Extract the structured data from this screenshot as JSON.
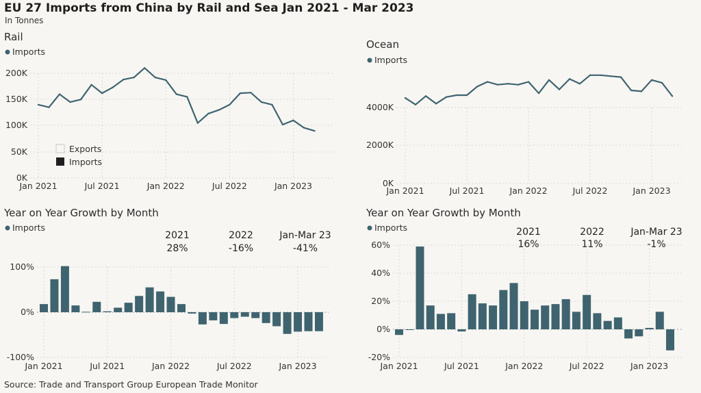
{
  "header": {
    "title": "EU 27 Imports from China by Rail and Sea Jan 2021 - Mar 2023",
    "subtitle": "In Tonnes"
  },
  "footer": "Source: Trade and Transport Group European Trade Monitor",
  "colors": {
    "series": "#3f6470",
    "background": "#f7f6f2"
  },
  "chart_data": [
    {
      "type": "line",
      "title": "Rail",
      "legend": [
        "Imports"
      ],
      "legend2": [
        "Exports",
        "Imports"
      ],
      "x_ticks": [
        "Jan 2021",
        "Jul 2021",
        "Jan 2022",
        "Jul 2022",
        "Jan 2023"
      ],
      "y_ticks": [
        "0K",
        "50K",
        "100K",
        "150K",
        "200K"
      ],
      "ylim": [
        0,
        220000
      ],
      "x": [
        "2021-01",
        "2021-02",
        "2021-03",
        "2021-04",
        "2021-05",
        "2021-06",
        "2021-07",
        "2021-08",
        "2021-09",
        "2021-10",
        "2021-11",
        "2021-12",
        "2022-01",
        "2022-02",
        "2022-03",
        "2022-04",
        "2022-05",
        "2022-06",
        "2022-07",
        "2022-08",
        "2022-09",
        "2022-10",
        "2022-11",
        "2022-12",
        "2023-01",
        "2023-02",
        "2023-03"
      ],
      "series": [
        {
          "name": "Imports",
          "values": [
            140000,
            135000,
            160000,
            145000,
            150000,
            178000,
            162000,
            173000,
            188000,
            192000,
            210000,
            192000,
            187000,
            160000,
            155000,
            105000,
            123000,
            130000,
            140000,
            162000,
            163000,
            145000,
            140000,
            102000,
            110000,
            96000,
            90000
          ]
        }
      ]
    },
    {
      "type": "line",
      "title": "Ocean",
      "legend": [
        "Imports"
      ],
      "x_ticks": [
        "Jan 2021",
        "Jul 2021",
        "Jan 2022",
        "Jul 2022",
        "Jan 2023"
      ],
      "y_ticks": [
        "0K",
        "2000K",
        "4000K"
      ],
      "ylim": [
        0,
        6200000
      ],
      "x": [
        "2021-01",
        "2021-02",
        "2021-03",
        "2021-04",
        "2021-05",
        "2021-06",
        "2021-07",
        "2021-08",
        "2021-09",
        "2021-10",
        "2021-11",
        "2021-12",
        "2022-01",
        "2022-02",
        "2022-03",
        "2022-04",
        "2022-05",
        "2022-06",
        "2022-07",
        "2022-08",
        "2022-09",
        "2022-10",
        "2022-11",
        "2022-12",
        "2023-01",
        "2023-02",
        "2023-03"
      ],
      "series": [
        {
          "name": "Imports",
          "values": [
            4500000,
            4150000,
            4600000,
            4200000,
            4550000,
            4650000,
            4650000,
            5100000,
            5350000,
            5200000,
            5250000,
            5200000,
            5350000,
            4750000,
            5450000,
            4950000,
            5500000,
            5250000,
            5700000,
            5700000,
            5650000,
            5600000,
            4900000,
            4850000,
            5450000,
            5300000,
            4600000
          ]
        }
      ]
    },
    {
      "type": "bar",
      "title": "Year on Year Growth by Month",
      "legend": [
        "Imports"
      ],
      "x_ticks": [
        "Jan 2021",
        "Jul 2021",
        "Jan 2022",
        "Jul 2022",
        "Jan 2023"
      ],
      "y_ticks": [
        "-100%",
        "0%",
        "100%"
      ],
      "ylim": [
        -100,
        100
      ],
      "x": [
        "2021-01",
        "2021-02",
        "2021-03",
        "2021-04",
        "2021-05",
        "2021-06",
        "2021-07",
        "2021-08",
        "2021-09",
        "2021-10",
        "2021-11",
        "2021-12",
        "2022-01",
        "2022-02",
        "2022-03",
        "2022-04",
        "2022-05",
        "2022-06",
        "2022-07",
        "2022-08",
        "2022-09",
        "2022-10",
        "2022-11",
        "2022-12",
        "2023-01",
        "2023-02",
        "2023-03"
      ],
      "series": [
        {
          "name": "Imports",
          "values": [
            18,
            73,
            102,
            15,
            1,
            23,
            2,
            10,
            21,
            36,
            55,
            46,
            34,
            18,
            -3,
            -27,
            -18,
            -26,
            -13,
            -10,
            -13,
            -24,
            -31,
            -48,
            -43,
            -42,
            -42
          ]
        }
      ],
      "summary": [
        {
          "label": "2021",
          "value": "28%"
        },
        {
          "label": "2022",
          "value": "-16%"
        },
        {
          "label": "Jan-Mar 23",
          "value": "-41%"
        }
      ]
    },
    {
      "type": "bar",
      "title": "Year on Year Growth by Month",
      "legend": [
        "Imports"
      ],
      "x_ticks": [
        "Jan 2021",
        "Jul 2021",
        "Jan 2022",
        "Jul 2022",
        "Jan 2023"
      ],
      "y_ticks": [
        "-20%",
        "0%",
        "20%",
        "40%",
        "60%"
      ],
      "ylim": [
        -20,
        60
      ],
      "x": [
        "2021-01",
        "2021-02",
        "2021-03",
        "2021-04",
        "2021-05",
        "2021-06",
        "2021-07",
        "2021-08",
        "2021-09",
        "2021-10",
        "2021-11",
        "2021-12",
        "2022-01",
        "2022-02",
        "2022-03",
        "2022-04",
        "2022-05",
        "2022-06",
        "2022-07",
        "2022-08",
        "2022-09",
        "2022-10",
        "2022-11",
        "2022-12",
        "2023-01",
        "2023-02",
        "2023-03"
      ],
      "series": [
        {
          "name": "Imports",
          "values": [
            -4,
            -0.5,
            59,
            17,
            11,
            11.5,
            -1.5,
            25,
            18.5,
            17,
            28,
            33,
            20,
            14,
            17,
            18,
            21.5,
            12.5,
            24.5,
            11.5,
            6,
            8.5,
            -6.5,
            -5,
            1,
            12.5,
            -15
          ]
        }
      ],
      "summary": [
        {
          "label": "2021",
          "value": "16%"
        },
        {
          "label": "2022",
          "value": "11%"
        },
        {
          "label": "Jan-Mar 23",
          "value": "-1%"
        }
      ]
    }
  ]
}
